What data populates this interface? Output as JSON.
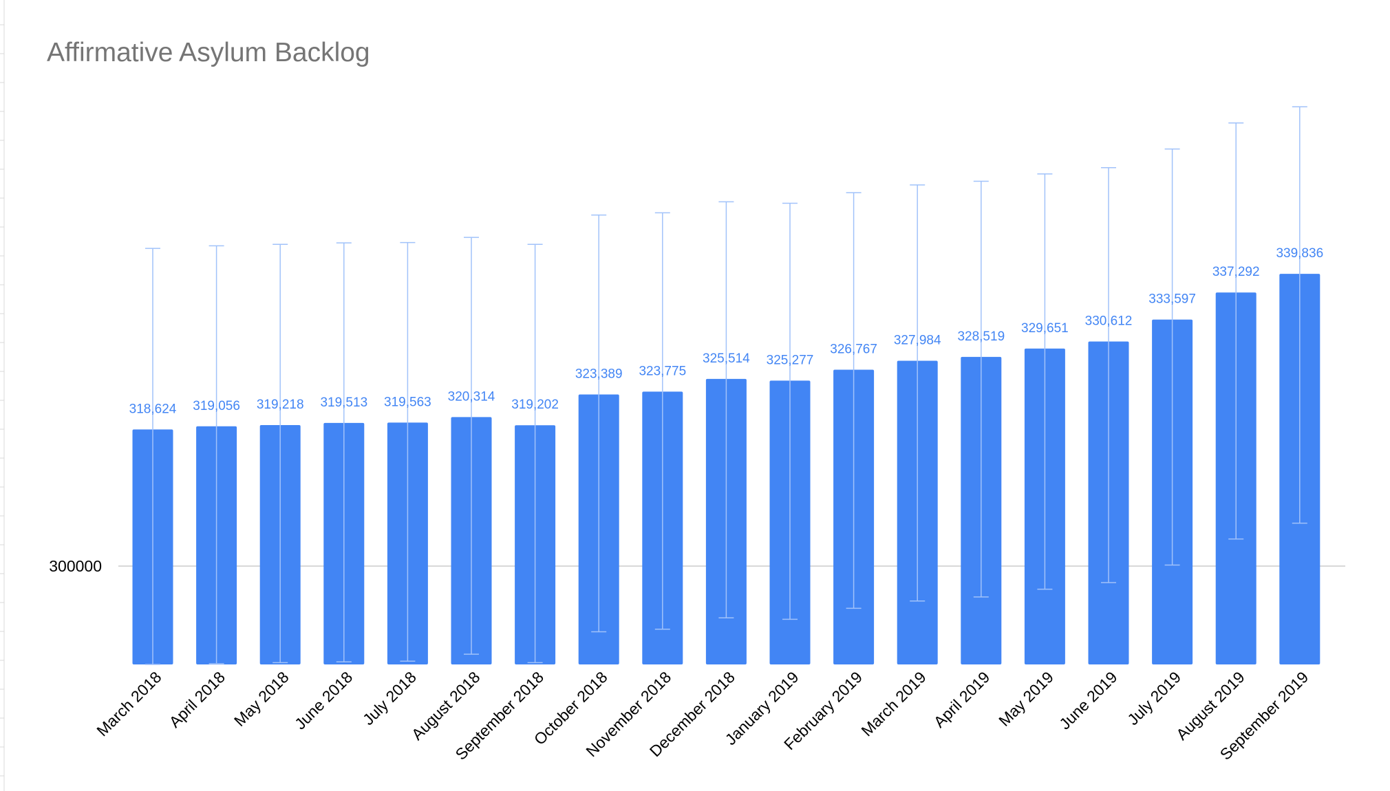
{
  "chart_data": {
    "type": "bar",
    "title": "Affirmative Asylum Backlog",
    "xlabel": "",
    "ylabel": "",
    "categories": [
      "March 2018",
      "April 2018",
      "May 2018",
      "June 2018",
      "July 2018",
      "August 2018",
      "September 2018",
      "October 2018",
      "November 2018",
      "December 2018",
      "January 2019",
      "February 2019",
      "March 2019",
      "April 2019",
      "May 2019",
      "June 2019",
      "July 2019",
      "August 2019",
      "September 2019"
    ],
    "values": [
      318624,
      319056,
      319218,
      319513,
      319563,
      320314,
      319202,
      323389,
      323775,
      325514,
      325277,
      326767,
      327984,
      328519,
      329651,
      330612,
      333597,
      337292,
      339836
    ],
    "data_labels": [
      "318,624",
      "319,056",
      "319,218",
      "319,513",
      "319,563",
      "320,314",
      "319,202",
      "323,389",
      "323,775",
      "325,514",
      "325,277",
      "326,767",
      "327,984",
      "328,519",
      "329,651",
      "330,612",
      "333,597",
      "337,292",
      "339,836"
    ],
    "error_bars": [
      {
        "low": 286600,
        "high": 343300
      },
      {
        "low": 286700,
        "high": 343650
      },
      {
        "low": 286850,
        "high": 343850
      },
      {
        "low": 286950,
        "high": 344050
      },
      {
        "low": 287050,
        "high": 344100
      },
      {
        "low": 288000,
        "high": 344800
      },
      {
        "low": 286850,
        "high": 343850
      },
      {
        "low": 291050,
        "high": 347850
      },
      {
        "low": 291400,
        "high": 348150
      },
      {
        "low": 292950,
        "high": 349650
      },
      {
        "low": 292750,
        "high": 349450
      },
      {
        "low": 294250,
        "high": 350900
      },
      {
        "low": 295250,
        "high": 351950
      },
      {
        "low": 295800,
        "high": 352450
      },
      {
        "low": 296850,
        "high": 353450
      },
      {
        "low": 297750,
        "high": 354300
      },
      {
        "low": 300150,
        "high": 356850
      },
      {
        "low": 303700,
        "high": 360400
      },
      {
        "low": 305850,
        "high": 362600
      }
    ],
    "y_ticks": [
      300000
    ],
    "y_tick_labels": [
      "300000"
    ],
    "ylim": [
      286600,
      364500
    ],
    "grid": true,
    "bar_color": "#4285f4",
    "error_bar_color": "#a1c2fa",
    "label_color": "#4285f4",
    "title_color": "#757575",
    "grid_color": "#cccccc"
  }
}
